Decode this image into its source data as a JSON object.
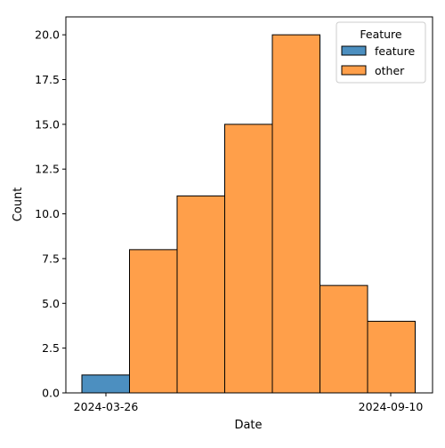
{
  "chart_data": {
    "type": "bar",
    "title": "",
    "xlabel": "Date",
    "ylabel": "Count",
    "ylim": [
      0,
      21
    ],
    "grid": false,
    "categories": [
      "2024-03-26 – 2024-04-21",
      "2024-04-21 – 2024-05-17",
      "2024-05-17 – 2024-06-12",
      "2024-06-12 – 2024-07-08",
      "2024-07-08 – 2024-08-03",
      "2024-08-03 – 2024-08-29",
      "2024-08-29 – 2024-09-24"
    ],
    "series": [
      {
        "name": "feature",
        "color": "#4c8fc0",
        "values": [
          1,
          0,
          0,
          0,
          0,
          0,
          0
        ]
      },
      {
        "name": "other",
        "color": "#ff9f4a",
        "values": [
          0,
          8,
          11,
          15,
          20,
          6,
          4
        ]
      }
    ],
    "x_tick_labels": [
      "2024-03-26",
      "2024-09-10"
    ],
    "y_tick_labels": [
      "0.0",
      "2.5",
      "5.0",
      "7.5",
      "10.0",
      "12.5",
      "15.0",
      "17.5",
      "20.0"
    ],
    "y_ticks": [
      0,
      2.5,
      5,
      7.5,
      10,
      12.5,
      15,
      17.5,
      20
    ],
    "legend": {
      "title": "Feature",
      "placement": "top-right",
      "entries": [
        "feature",
        "other"
      ]
    }
  }
}
